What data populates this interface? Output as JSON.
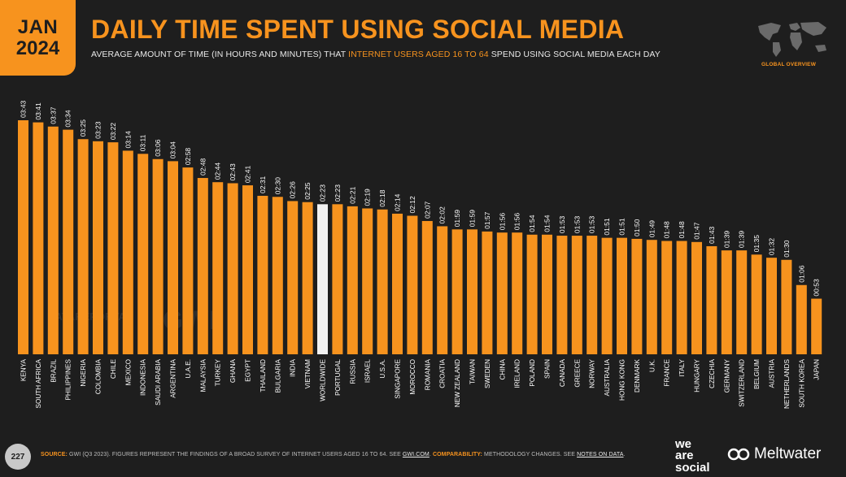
{
  "header": {
    "month": "JAN",
    "year": "2024",
    "title": "DAILY TIME SPENT USING SOCIAL MEDIA",
    "subtitle_pre": "AVERAGE AMOUNT OF TIME (IN HOURS AND MINUTES) THAT ",
    "subtitle_highlight": "INTERNET USERS AGED 16 TO 64",
    "subtitle_post": " SPEND USING SOCIAL MEDIA EACH DAY",
    "section_label": "GLOBAL OVERVIEW"
  },
  "watermark": {
    "left": "DATAREPORTAL",
    "right": "GWI."
  },
  "footer": {
    "page_number": "227",
    "source_label": "SOURCE:",
    "source_text": " GWI (Q3 2023). FIGURES REPRESENT THE FINDINGS OF A BROAD SURVEY OF INTERNET USERS AGED 16 TO 64. SEE ",
    "source_link": "GWI.COM",
    "comparability_label": "COMPARABILITY:",
    "comparability_text": " METHODOLOGY CHANGES. SEE ",
    "comparability_link": "NOTES ON DATA",
    "brand_left": "we are social",
    "brand_right": "Meltwater"
  },
  "colors": {
    "bar": "#f7931e",
    "highlight_bar": "#f2f2f2",
    "background": "#1e1e1e",
    "accent": "#f7931e"
  },
  "chart_data": {
    "type": "bar",
    "categories": [
      "KENYA",
      "SOUTH AFRICA",
      "BRAZIL",
      "PHILIPPINES",
      "NIGERIA",
      "COLOMBIA",
      "CHILE",
      "MEXICO",
      "INDONESIA",
      "SAUDI ARABIA",
      "ARGENTINA",
      "U.A.E.",
      "MALAYSIA",
      "TURKEY",
      "GHANA",
      "EGYPT",
      "THAILAND",
      "BULGARIA",
      "INDIA",
      "VIETNAM",
      "WORLDWIDE",
      "PORTUGAL",
      "RUSSIA",
      "ISRAEL",
      "U.S.A.",
      "SINGAPORE",
      "MOROCCO",
      "ROMANIA",
      "CROATIA",
      "NEW ZEALAND",
      "TAIWAN",
      "SWEDEN",
      "CHINA",
      "IRELAND",
      "POLAND",
      "SPAIN",
      "CANADA",
      "GREECE",
      "NORWAY",
      "AUSTRALIA",
      "HONG KONG",
      "DENMARK",
      "U.K.",
      "FRANCE",
      "ITALY",
      "HUNGARY",
      "CZECHIA",
      "GERMANY",
      "SWITZERLAND",
      "BELGIUM",
      "AUSTRIA",
      "NETHERLANDS",
      "SOUTH KOREA",
      "JAPAN"
    ],
    "labels": [
      "03:43",
      "03:41",
      "03:37",
      "03:34",
      "03:25",
      "03:23",
      "03:22",
      "03:14",
      "03:11",
      "03:06",
      "03:04",
      "02:58",
      "02:48",
      "02:44",
      "02:43",
      "02:41",
      "02:31",
      "02:30",
      "02:26",
      "02:25",
      "02:23",
      "02:23",
      "02:21",
      "02:19",
      "02:18",
      "02:14",
      "02:12",
      "02:07",
      "02:02",
      "01:59",
      "01:59",
      "01:57",
      "01:56",
      "01:56",
      "01:54",
      "01:54",
      "01:53",
      "01:53",
      "01:53",
      "01:51",
      "01:51",
      "01:50",
      "01:49",
      "01:48",
      "01:48",
      "01:47",
      "01:43",
      "01:39",
      "01:39",
      "01:35",
      "01:32",
      "01:30",
      "01:06",
      "00:53"
    ],
    "values_minutes": [
      223,
      221,
      217,
      214,
      205,
      203,
      202,
      194,
      191,
      186,
      184,
      178,
      168,
      164,
      163,
      161,
      151,
      150,
      146,
      145,
      143,
      143,
      141,
      139,
      138,
      134,
      132,
      127,
      122,
      119,
      119,
      117,
      116,
      116,
      114,
      114,
      113,
      113,
      113,
      111,
      111,
      110,
      109,
      108,
      108,
      107,
      103,
      99,
      99,
      95,
      92,
      90,
      66,
      53
    ],
    "highlight_category": "WORLDWIDE"
  }
}
